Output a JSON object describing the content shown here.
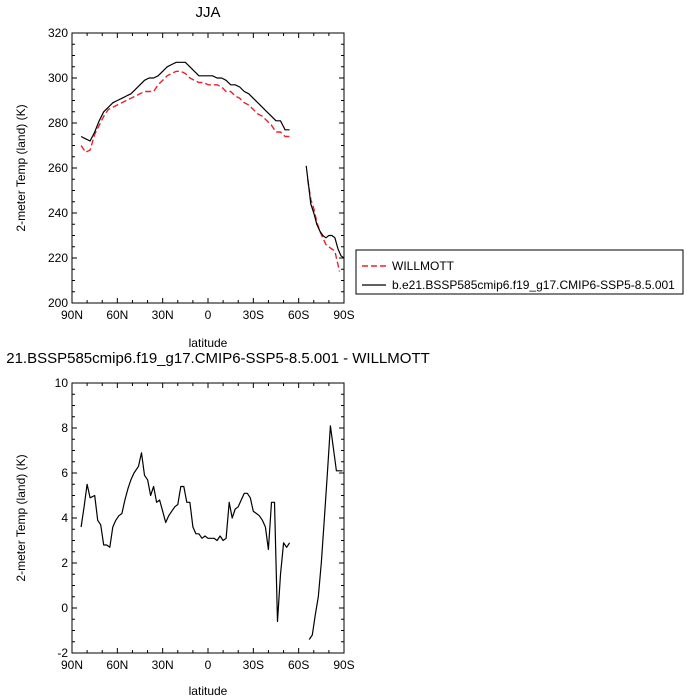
{
  "chart_data": [
    {
      "type": "line",
      "title": "JJA",
      "xlabel": "latitude",
      "ylabel": "2-meter Temp (land) (K)",
      "x_tick_labels": [
        "90N",
        "60N",
        "30N",
        "0",
        "30S",
        "60S",
        "90S"
      ],
      "x_tick_values": [
        90,
        60,
        30,
        0,
        -30,
        -60,
        -90
      ],
      "xlim": [
        90,
        -90
      ],
      "ylim": [
        200,
        320
      ],
      "y_ticks": [
        200,
        220,
        240,
        260,
        280,
        300,
        320
      ],
      "legend_position": "right",
      "series": [
        {
          "name": "WILLMOTT",
          "color": "#e8232b",
          "dash": "dashed",
          "segments": [
            [
              [
                84,
                270
              ],
              [
                81,
                267
              ],
              [
                78,
                268
              ],
              [
                75,
                275
              ],
              [
                72,
                279
              ],
              [
                69,
                283
              ],
              [
                66,
                286
              ],
              [
                63,
                287
              ],
              [
                60,
                288
              ],
              [
                57,
                289
              ],
              [
                54,
                290
              ],
              [
                51,
                291
              ],
              [
                48,
                292
              ],
              [
                45,
                293
              ],
              [
                42,
                294
              ],
              [
                39,
                294
              ],
              [
                36,
                294
              ],
              [
                33,
                297
              ],
              [
                30,
                299
              ],
              [
                27,
                301
              ],
              [
                24,
                302
              ],
              [
                21,
                303
              ],
              [
                18,
                303
              ],
              [
                15,
                302
              ],
              [
                12,
                300
              ],
              [
                9,
                299
              ],
              [
                6,
                298
              ],
              [
                3,
                298
              ],
              [
                0,
                297
              ],
              [
                -3,
                297
              ],
              [
                -6,
                297
              ],
              [
                -9,
                296
              ],
              [
                -12,
                294
              ],
              [
                -15,
                294
              ],
              [
                -18,
                292
              ],
              [
                -21,
                291
              ],
              [
                -24,
                289
              ],
              [
                -27,
                288
              ],
              [
                -30,
                286
              ],
              [
                -33,
                284
              ],
              [
                -36,
                283
              ],
              [
                -39,
                281
              ],
              [
                -42,
                279
              ],
              [
                -45,
                276
              ],
              [
                -48,
                276
              ],
              [
                -51,
                274
              ],
              [
                -54,
                274
              ]
            ],
            [
              [
                -66,
                255
              ],
              [
                -68,
                246
              ],
              [
                -70,
                242
              ],
              [
                -72,
                236
              ],
              [
                -74,
                232
              ],
              [
                -76,
                229
              ],
              [
                -78,
                226
              ],
              [
                -80,
                225
              ],
              [
                -82,
                224
              ],
              [
                -84,
                223
              ],
              [
                -86,
                217
              ],
              [
                -87,
                214
              ]
            ]
          ]
        },
        {
          "name": "b.e21.BSSP585cmip6.f19_g17.CMIP6-SSP5-8.5.001",
          "color": "#000000",
          "dash": "solid",
          "segments": [
            [
              [
                84,
                274
              ],
              [
                81,
                273
              ],
              [
                78,
                272
              ],
              [
                75,
                276
              ],
              [
                72,
                281
              ],
              [
                69,
                285
              ],
              [
                66,
                287
              ],
              [
                63,
                289
              ],
              [
                60,
                290
              ],
              [
                57,
                291
              ],
              [
                54,
                292
              ],
              [
                51,
                293
              ],
              [
                48,
                295
              ],
              [
                45,
                297
              ],
              [
                42,
                299
              ],
              [
                39,
                300
              ],
              [
                36,
                300
              ],
              [
                33,
                301
              ],
              [
                30,
                303
              ],
              [
                27,
                305
              ],
              [
                24,
                306
              ],
              [
                21,
                307
              ],
              [
                18,
                307
              ],
              [
                15,
                307
              ],
              [
                12,
                305
              ],
              [
                9,
                303
              ],
              [
                6,
                301
              ],
              [
                3,
                301
              ],
              [
                0,
                301
              ],
              [
                -3,
                301
              ],
              [
                -6,
                300
              ],
              [
                -9,
                300
              ],
              [
                -12,
                299
              ],
              [
                -15,
                297
              ],
              [
                -18,
                297
              ],
              [
                -21,
                296
              ],
              [
                -24,
                294
              ],
              [
                -27,
                293
              ],
              [
                -30,
                291
              ],
              [
                -33,
                289
              ],
              [
                -36,
                287
              ],
              [
                -39,
                285
              ],
              [
                -42,
                283
              ],
              [
                -45,
                281
              ],
              [
                -48,
                281
              ],
              [
                -51,
                277
              ],
              [
                -54,
                277
              ]
            ],
            [
              [
                -65,
                261
              ],
              [
                -67,
                250
              ],
              [
                -68,
                244
              ],
              [
                -70,
                240
              ],
              [
                -72,
                235
              ],
              [
                -74,
                232
              ],
              [
                -76,
                230
              ],
              [
                -78,
                229
              ],
              [
                -80,
                230
              ],
              [
                -82,
                230
              ],
              [
                -84,
                229
              ],
              [
                -86,
                224
              ],
              [
                -88,
                221
              ],
              [
                -90,
                220
              ]
            ]
          ]
        }
      ]
    },
    {
      "type": "line",
      "title": "21.BSSP585cmip6.f19_g17.CMIP6-SSP5-8.5.001 - WILLMOTT",
      "xlabel": "latitude",
      "ylabel": "2-meter Temp (land) (K)",
      "x_tick_labels": [
        "90N",
        "60N",
        "30N",
        "0",
        "30S",
        "60S",
        "90S"
      ],
      "x_tick_values": [
        90,
        60,
        30,
        0,
        -30,
        -60,
        -90
      ],
      "xlim": [
        90,
        -90
      ],
      "ylim": [
        -2,
        10
      ],
      "y_ticks": [
        -2,
        0,
        2,
        4,
        6,
        8,
        10
      ],
      "series": [
        {
          "color": "#000000",
          "dash": "solid",
          "segments": [
            [
              [
                84,
                3.6
              ],
              [
                82,
                4.5
              ],
              [
                80,
                5.5
              ],
              [
                78,
                4.9
              ],
              [
                75,
                5.0
              ],
              [
                73,
                3.9
              ],
              [
                71,
                3.7
              ],
              [
                69,
                2.8
              ],
              [
                67,
                2.8
              ],
              [
                65,
                2.7
              ],
              [
                63,
                3.6
              ],
              [
                61,
                3.9
              ],
              [
                59,
                4.1
              ],
              [
                57,
                4.2
              ],
              [
                55,
                4.8
              ],
              [
                53,
                5.3
              ],
              [
                51,
                5.7
              ],
              [
                49,
                6.0
              ],
              [
                46,
                6.3
              ],
              [
                44,
                6.9
              ],
              [
                42,
                5.9
              ],
              [
                40,
                5.7
              ],
              [
                38,
                5.0
              ],
              [
                36,
                5.4
              ],
              [
                34,
                4.7
              ],
              [
                32,
                4.8
              ],
              [
                30,
                4.3
              ],
              [
                28,
                3.8
              ],
              [
                26,
                4.1
              ],
              [
                24,
                4.3
              ],
              [
                22,
                4.5
              ],
              [
                20,
                4.6
              ],
              [
                18,
                5.4
              ],
              [
                16,
                5.4
              ],
              [
                14,
                4.7
              ],
              [
                12,
                4.7
              ],
              [
                10,
                3.6
              ],
              [
                8,
                3.3
              ],
              [
                6,
                3.3
              ],
              [
                4,
                3.1
              ],
              [
                2,
                3.2
              ],
              [
                0,
                3.1
              ],
              [
                -2,
                3.1
              ],
              [
                -4,
                3.1
              ],
              [
                -6,
                3.0
              ],
              [
                -8,
                3.2
              ],
              [
                -10,
                3.0
              ],
              [
                -12,
                3.1
              ],
              [
                -14,
                4.7
              ],
              [
                -16,
                4.0
              ],
              [
                -18,
                4.4
              ],
              [
                -20,
                4.5
              ],
              [
                -22,
                4.8
              ],
              [
                -24,
                5.1
              ],
              [
                -26,
                5.1
              ],
              [
                -28,
                4.9
              ],
              [
                -30,
                4.3
              ],
              [
                -32,
                4.2
              ],
              [
                -34,
                4.1
              ],
              [
                -36,
                3.9
              ],
              [
                -38,
                3.6
              ],
              [
                -40,
                2.6
              ],
              [
                -42,
                4.7
              ],
              [
                -44,
                4.7
              ],
              [
                -46,
                -0.6
              ],
              [
                -48,
                1.5
              ],
              [
                -50,
                2.9
              ],
              [
                -52,
                2.7
              ],
              [
                -54,
                2.9
              ]
            ],
            [
              [
                -67,
                -1.4
              ],
              [
                -69,
                -1.2
              ],
              [
                -71,
                -0.3
              ],
              [
                -73,
                0.5
              ],
              [
                -75,
                2.0
              ],
              [
                -77,
                4.0
              ],
              [
                -79,
                6.0
              ],
              [
                -81,
                8.1
              ],
              [
                -83,
                7.1
              ],
              [
                -85,
                6.1
              ],
              [
                -87,
                6.1
              ],
              [
                -89,
                6.1
              ]
            ]
          ]
        }
      ]
    }
  ]
}
